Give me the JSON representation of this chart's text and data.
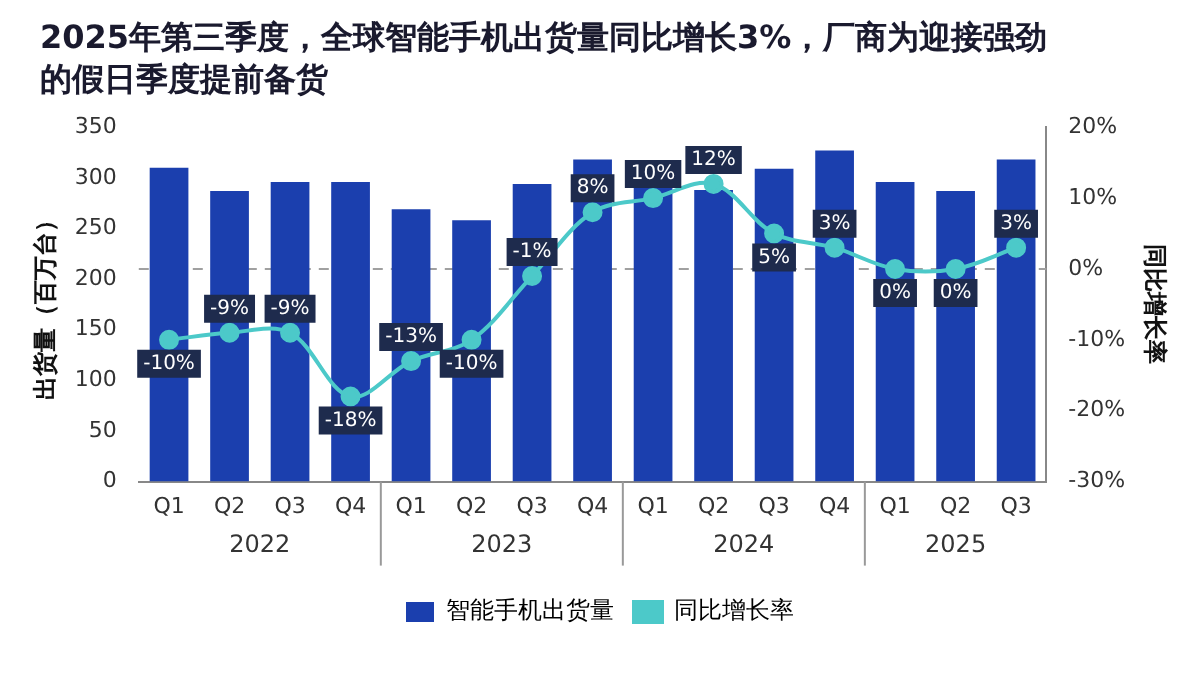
{
  "chart_data": {
    "type": "bar",
    "title": "2025年第三季度，全球智能手机出货量同比增长3%，厂商为迎接强劲的假日季度提前备货",
    "categories": [
      "Q1",
      "Q2",
      "Q3",
      "Q4",
      "Q1",
      "Q2",
      "Q3",
      "Q4",
      "Q1",
      "Q2",
      "Q3",
      "Q4",
      "Q1",
      "Q2",
      "Q3"
    ],
    "series": [
      {
        "name": "智能手机出货量",
        "color": "#1b3fae",
        "values": [
          310,
          287,
          296,
          296,
          269,
          258,
          294,
          318,
          295,
          288,
          309,
          327,
          296,
          287,
          318
        ]
      },
      {
        "name": "同比增长率",
        "type": "line",
        "axis": "y2",
        "color": "#4cc9c9",
        "values": [
          -10,
          -9,
          -9,
          -18,
          -13,
          -10,
          -1,
          8,
          10,
          12,
          5,
          3,
          0,
          0,
          3
        ],
        "value_labels": [
          "-10%",
          "-9%",
          "-9%",
          "-18%",
          "-13%",
          "-10%",
          "-1%",
          "8%",
          "10%",
          "12%",
          "5%",
          "3%",
          "0%",
          "0%",
          "3%"
        ]
      }
    ],
    "ylabel": "出货量（百万台）",
    "y2label": "同比增长率",
    "ylim": [
      0,
      350
    ],
    "yticks": [
      0,
      50,
      100,
      150,
      200,
      250,
      300,
      350
    ],
    "y2lim": [
      -30,
      20
    ],
    "y2ticks": [
      {
        "value": -30,
        "label": "-30%"
      },
      {
        "value": -20,
        "label": "-20%"
      },
      {
        "value": -10,
        "label": "-10%"
      },
      {
        "value": 0,
        "label": "0%"
      },
      {
        "value": 10,
        "label": "10%"
      },
      {
        "value": 20,
        "label": "20%"
      }
    ],
    "ref_lines": [
      {
        "axis": "y2",
        "value": 0,
        "color": "#a0a0a0",
        "line_style": "dashed"
      }
    ],
    "annotations": [
      "2022",
      "2023",
      "2024",
      "2025"
    ],
    "marker": "circle",
    "legend": "bottom",
    "grid": false
  }
}
